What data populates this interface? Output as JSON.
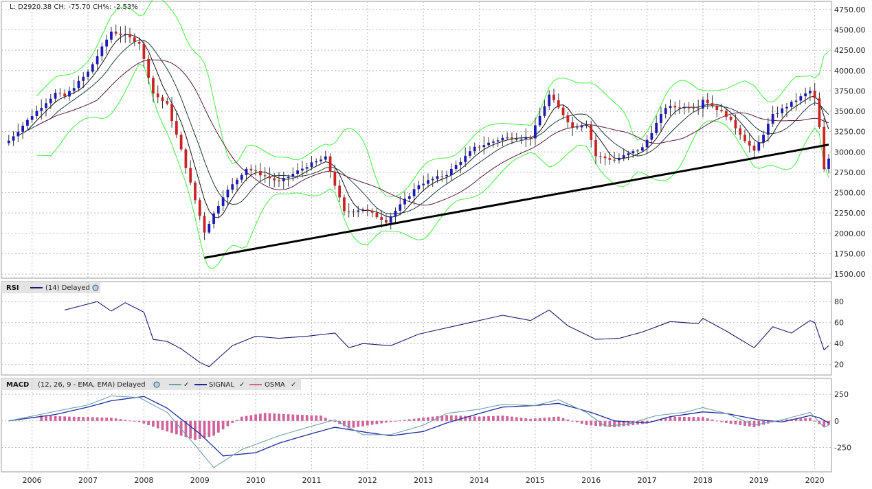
{
  "status_line": "L: D2920.38 CH: -75.70 CH%: -2.53%",
  "colors": {
    "up_candle": "#1a1ab8",
    "down_candle": "#cc2222",
    "bollinger": "#44ee44",
    "sma_short": "#111111",
    "sma_mid": "#1e3a3a",
    "sma_long": "#5a1a3a",
    "trendline": "#000000",
    "rsi_line": "#1a1a6e",
    "macd_line": "#6f9fa8",
    "signal_line": "#1a2a9e",
    "osma_bars": "#d0649a",
    "grid": "#b8b8b8",
    "panel_header_bg": "#e4e4e4"
  },
  "panels": {
    "price": {
      "title": ""
    },
    "rsi": {
      "title": "RSI",
      "legend": "(14) Delayed"
    },
    "macd": {
      "title": "MACD",
      "legend_params": "(12, 26, 9 - EMA, EMA) Delayed",
      "signal_label": "SIGNAL",
      "osma_label": "OSMA"
    }
  },
  "chart_data": [
    {
      "type": "candlestick",
      "panel": "price",
      "x_axis": {
        "type": "date",
        "tick_labels": [
          "2006",
          "2007",
          "2008",
          "2009",
          "2010",
          "2011",
          "2012",
          "2013",
          "2014",
          "2015",
          "2016",
          "2017",
          "2018",
          "2019",
          "2020"
        ],
        "range": [
          "2005-07",
          "2020-04"
        ]
      },
      "y_axis": {
        "position": "right",
        "range": [
          1450,
          4850
        ],
        "tick_labels": [
          "1500.00",
          "1750.00",
          "2000.00",
          "2250.00",
          "2500.00",
          "2750.00",
          "3000.00",
          "3250.00",
          "3500.00",
          "3750.00",
          "4000.00",
          "4250.00",
          "4500.00",
          "4750.00"
        ],
        "tick_values": [
          1500,
          1750,
          2000,
          2250,
          2500,
          2750,
          3000,
          3250,
          3500,
          3750,
          4000,
          4250,
          4500,
          4750
        ]
      },
      "grid": true,
      "trendline": {
        "from": {
          "x": "2009-02",
          "y": 1700
        },
        "to": {
          "x": "2020-04",
          "y": 3090
        }
      },
      "price_path": [
        [
          "2005-08",
          3140
        ],
        [
          "2006-01",
          3450
        ],
        [
          "2006-06",
          3720
        ],
        [
          "2006-08",
          3680
        ],
        [
          "2007-01",
          3980
        ],
        [
          "2007-06",
          4480
        ],
        [
          "2007-09",
          4430
        ],
        [
          "2007-12",
          4340
        ],
        [
          "2008-03",
          3720
        ],
        [
          "2008-06",
          3580
        ],
        [
          "2008-09",
          3020
        ],
        [
          "2008-12",
          2410
        ],
        [
          "2009-02",
          2020
        ],
        [
          "2009-06",
          2460
        ],
        [
          "2009-11",
          2800
        ],
        [
          "2010-06",
          2630
        ],
        [
          "2010-12",
          2830
        ],
        [
          "2011-04",
          2930
        ],
        [
          "2011-08",
          2260
        ],
        [
          "2011-12",
          2300
        ],
        [
          "2012-05",
          2150
        ],
        [
          "2012-12",
          2600
        ],
        [
          "2013-06",
          2730
        ],
        [
          "2013-12",
          3050
        ],
        [
          "2014-06",
          3170
        ],
        [
          "2014-12",
          3180
        ],
        [
          "2015-04",
          3700
        ],
        [
          "2015-09",
          3300
        ],
        [
          "2015-12",
          3350
        ],
        [
          "2016-02",
          2950
        ],
        [
          "2016-06",
          2900
        ],
        [
          "2016-12",
          3050
        ],
        [
          "2017-05",
          3550
        ],
        [
          "2017-12",
          3550
        ],
        [
          "2018-01",
          3650
        ],
        [
          "2018-06",
          3450
        ],
        [
          "2018-12",
          3000
        ],
        [
          "2019-04",
          3450
        ],
        [
          "2019-12",
          3750
        ],
        [
          "2020-01",
          3650
        ],
        [
          "2020-02",
          3300
        ],
        [
          "2020-03",
          2780
        ],
        [
          "2020-04",
          2920
        ]
      ]
    },
    {
      "type": "line",
      "panel": "rsi",
      "series": [
        {
          "name": "(14) Delayed"
        }
      ],
      "y_axis": {
        "position": "right",
        "range": [
          10,
          88
        ],
        "tick_labels": [
          "20",
          "40",
          "60",
          "80"
        ],
        "tick_values": [
          20,
          40,
          60,
          80
        ]
      },
      "points": [
        [
          "2006-08",
          72
        ],
        [
          "2007-03",
          80
        ],
        [
          "2007-06",
          71
        ],
        [
          "2007-09",
          79
        ],
        [
          "2008-01",
          70
        ],
        [
          "2008-03",
          44
        ],
        [
          "2008-06",
          42
        ],
        [
          "2008-09",
          35
        ],
        [
          "2009-01",
          22
        ],
        [
          "2009-03",
          18
        ],
        [
          "2009-08",
          38
        ],
        [
          "2010-01",
          47
        ],
        [
          "2010-06",
          45
        ],
        [
          "2010-12",
          47
        ],
        [
          "2011-06",
          50
        ],
        [
          "2011-09",
          36
        ],
        [
          "2011-12",
          40
        ],
        [
          "2012-06",
          38
        ],
        [
          "2012-12",
          49
        ],
        [
          "2013-06",
          55
        ],
        [
          "2013-12",
          61
        ],
        [
          "2014-06",
          67
        ],
        [
          "2014-12",
          62
        ],
        [
          "2015-04",
          72
        ],
        [
          "2015-08",
          57
        ],
        [
          "2016-02",
          44
        ],
        [
          "2016-07",
          45
        ],
        [
          "2016-12",
          51
        ],
        [
          "2017-06",
          61
        ],
        [
          "2017-12",
          59
        ],
        [
          "2018-01",
          64
        ],
        [
          "2018-06",
          52
        ],
        [
          "2018-12",
          36
        ],
        [
          "2019-04",
          56
        ],
        [
          "2019-08",
          50
        ],
        [
          "2019-12",
          62
        ],
        [
          "2020-01",
          60
        ],
        [
          "2020-03",
          34
        ],
        [
          "2020-04",
          38
        ]
      ]
    },
    {
      "type": "line",
      "panel": "macd",
      "series": [
        {
          "name": "MACD"
        },
        {
          "name": "SIGNAL"
        },
        {
          "name": "OSMA"
        }
      ],
      "y_axis": {
        "position": "right",
        "range": [
          -480,
          290
        ],
        "tick_labels": [
          "250",
          "0",
          "-250"
        ],
        "tick_values": [
          250,
          0,
          -250
        ]
      },
      "macd_points": [
        [
          "2005-08",
          0
        ],
        [
          "2006-06",
          90
        ],
        [
          "2007-01",
          150
        ],
        [
          "2007-06",
          235
        ],
        [
          "2007-12",
          220
        ],
        [
          "2008-06",
          80
        ],
        [
          "2008-12",
          -230
        ],
        [
          "2009-04",
          -440
        ],
        [
          "2009-10",
          -270
        ],
        [
          "2010-06",
          -140
        ],
        [
          "2011-01",
          -50
        ],
        [
          "2011-06",
          10
        ],
        [
          "2011-12",
          -130
        ],
        [
          "2012-06",
          -130
        ],
        [
          "2013-01",
          -40
        ],
        [
          "2013-06",
          70
        ],
        [
          "2014-01",
          110
        ],
        [
          "2014-06",
          155
        ],
        [
          "2015-01",
          145
        ],
        [
          "2015-06",
          200
        ],
        [
          "2015-12",
          80
        ],
        [
          "2016-04",
          -50
        ],
        [
          "2016-09",
          -30
        ],
        [
          "2017-03",
          50
        ],
        [
          "2017-09",
          80
        ],
        [
          "2018-01",
          125
        ],
        [
          "2018-06",
          70
        ],
        [
          "2018-12",
          -40
        ],
        [
          "2019-06",
          10
        ],
        [
          "2019-12",
          80
        ],
        [
          "2020-03",
          -60
        ],
        [
          "2020-04",
          -40
        ]
      ],
      "signal_points": [
        [
          "2005-08",
          0
        ],
        [
          "2006-06",
          60
        ],
        [
          "2007-01",
          130
        ],
        [
          "2007-06",
          190
        ],
        [
          "2008-01",
          230
        ],
        [
          "2008-06",
          120
        ],
        [
          "2009-01",
          -120
        ],
        [
          "2009-06",
          -330
        ],
        [
          "2010-01",
          -300
        ],
        [
          "2010-06",
          -210
        ],
        [
          "2011-01",
          -120
        ],
        [
          "2011-06",
          -60
        ],
        [
          "2012-01",
          -110
        ],
        [
          "2012-06",
          -140
        ],
        [
          "2013-01",
          -100
        ],
        [
          "2013-06",
          -20
        ],
        [
          "2014-01",
          70
        ],
        [
          "2014-06",
          130
        ],
        [
          "2015-01",
          145
        ],
        [
          "2015-06",
          165
        ],
        [
          "2016-01",
          80
        ],
        [
          "2016-06",
          0
        ],
        [
          "2017-01",
          -20
        ],
        [
          "2017-06",
          40
        ],
        [
          "2018-01",
          85
        ],
        [
          "2018-06",
          70
        ],
        [
          "2019-01",
          10
        ],
        [
          "2019-06",
          -10
        ],
        [
          "2019-12",
          50
        ],
        [
          "2020-02",
          30
        ],
        [
          "2020-04",
          -20
        ]
      ],
      "osma_points": [
        [
          "2006-03",
          50
        ],
        [
          "2006-09",
          40
        ],
        [
          "2007-06",
          30
        ],
        [
          "2007-12",
          -10
        ],
        [
          "2008-06",
          -100
        ],
        [
          "2008-12",
          -180
        ],
        [
          "2009-04",
          -140
        ],
        [
          "2009-10",
          40
        ],
        [
          "2010-03",
          75
        ],
        [
          "2010-09",
          60
        ],
        [
          "2011-03",
          50
        ],
        [
          "2011-09",
          -70
        ],
        [
          "2012-03",
          -30
        ],
        [
          "2012-09",
          10
        ],
        [
          "2013-06",
          55
        ],
        [
          "2014-01",
          40
        ],
        [
          "2014-06",
          50
        ],
        [
          "2014-12",
          20
        ],
        [
          "2015-06",
          40
        ],
        [
          "2015-12",
          -40
        ],
        [
          "2016-06",
          -60
        ],
        [
          "2016-12",
          -30
        ],
        [
          "2017-06",
          40
        ],
        [
          "2018-01",
          35
        ],
        [
          "2018-06",
          -20
        ],
        [
          "2018-12",
          -60
        ],
        [
          "2019-06",
          10
        ],
        [
          "2019-12",
          30
        ],
        [
          "2020-03",
          -60
        ],
        [
          "2020-04",
          -40
        ]
      ]
    }
  ]
}
